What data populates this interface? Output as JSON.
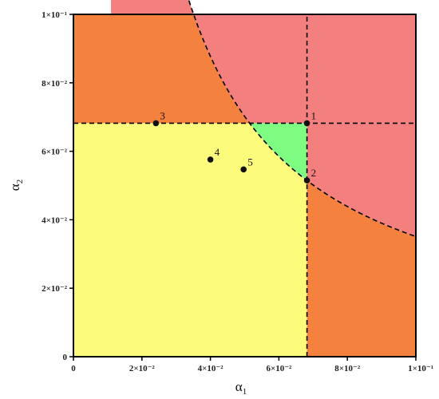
{
  "chart_data": {
    "type": "region-map",
    "xlabel": "α",
    "xlabel_sub": "1",
    "ylabel": "α",
    "ylabel_sub": "2",
    "xlim": [
      0,
      0.1
    ],
    "ylim": [
      0,
      0.1
    ],
    "x_ticks": [
      {
        "value": 0,
        "label": "0"
      },
      {
        "value": 0.02,
        "label": "2×10⁻²"
      },
      {
        "value": 0.04,
        "label": "4×10⁻²"
      },
      {
        "value": 0.06,
        "label": "6×10⁻²"
      },
      {
        "value": 0.08,
        "label": "8×10⁻²"
      },
      {
        "value": 0.1,
        "label": "1×10⁻¹"
      }
    ],
    "y_ticks": [
      {
        "value": 0,
        "label": "0"
      },
      {
        "value": 0.02,
        "label": "2×10⁻²"
      },
      {
        "value": 0.04,
        "label": "4×10⁻²"
      },
      {
        "value": 0.06,
        "label": "6×10⁻²"
      },
      {
        "value": 0.08,
        "label": "8×10⁻²"
      },
      {
        "value": 0.1,
        "label": "1×10⁻¹"
      }
    ],
    "threshold_x": 0.0682,
    "threshold_y": 0.0682,
    "curve_constant": 0.00351,
    "curve_x_range": [
      0.011,
      0.1
    ],
    "colors": {
      "red": "#f47f7f",
      "orange": "#f5813f",
      "yellow": "#fdfb7c",
      "green": "#7ffd82",
      "line": "#000000"
    },
    "points": [
      {
        "label": "1",
        "x": 0.0682,
        "y": 0.0682
      },
      {
        "label": "2",
        "x": 0.0682,
        "y": 0.0515
      },
      {
        "label": "3",
        "x": 0.0241,
        "y": 0.0682
      },
      {
        "label": "4",
        "x": 0.04,
        "y": 0.0576
      },
      {
        "label": "5",
        "x": 0.0497,
        "y": 0.0547
      }
    ]
  }
}
